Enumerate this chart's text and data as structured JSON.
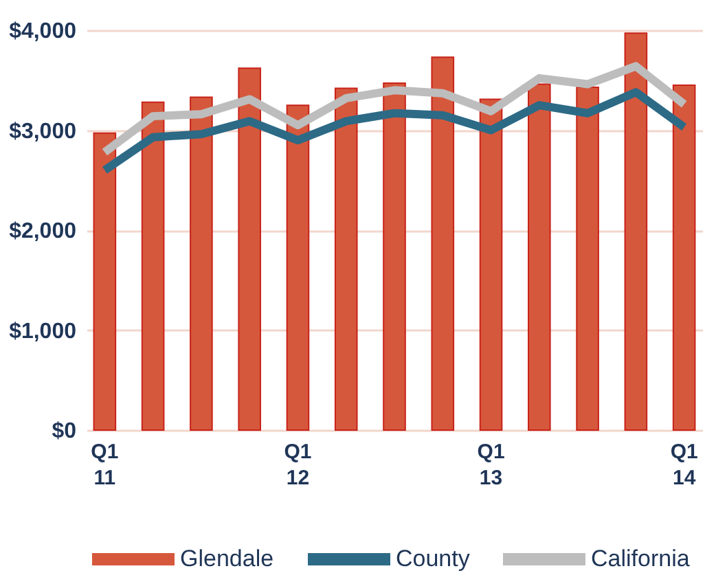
{
  "chart_data": {
    "type": "bar",
    "categories": [
      "Q1\n11",
      null,
      null,
      null,
      "Q1\n12",
      null,
      null,
      null,
      "Q1\n13",
      null,
      null,
      null,
      "Q1\n14"
    ],
    "series": [
      {
        "name": "Glendale",
        "color": "#d6583c",
        "values": [
          2970,
          3280,
          3330,
          3620,
          3250,
          3420,
          3470,
          3730,
          3310,
          3460,
          3430,
          3970,
          3450
        ]
      },
      {
        "name": "County",
        "type": "line",
        "color": "#2d6a86",
        "values": [
          2600,
          2930,
          2960,
          3090,
          2900,
          3090,
          3170,
          3150,
          3000,
          3250,
          3170,
          3380,
          3030
        ]
      },
      {
        "name": "California",
        "type": "line",
        "color": "#bdbdbd",
        "values": [
          2780,
          3140,
          3160,
          3310,
          3050,
          3320,
          3400,
          3370,
          3190,
          3520,
          3460,
          3640,
          3260
        ]
      }
    ],
    "ylim": [
      0,
      4000
    ],
    "yticks": [
      {
        "value": 0,
        "label": "$0"
      },
      {
        "value": 1000,
        "label": "$1,000"
      },
      {
        "value": 2000,
        "label": "$2,000"
      },
      {
        "value": 3000,
        "label": "$3,000"
      },
      {
        "value": 4000,
        "label": "$4,000"
      }
    ],
    "grid": "y",
    "legend": "bottom",
    "line_style": "solid"
  }
}
